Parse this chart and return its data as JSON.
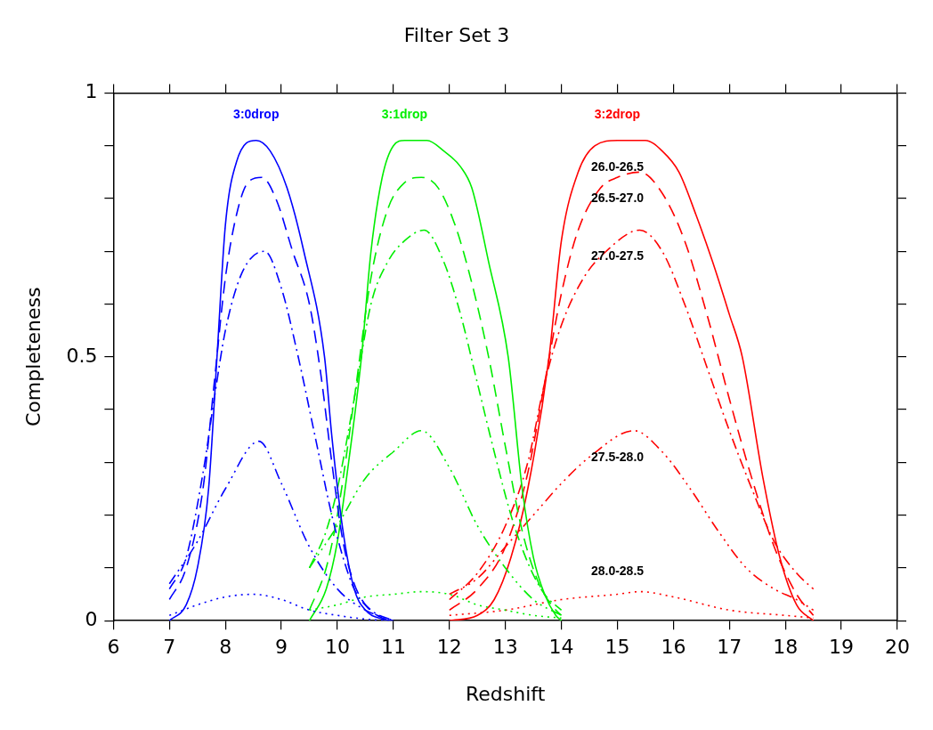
{
  "chart_data": {
    "type": "line",
    "title": "Filter Set 3",
    "xlabel": "Redshift",
    "ylabel": "Completeness",
    "xlim": [
      6,
      20
    ],
    "xticks": [
      6,
      7,
      8,
      9,
      10,
      11,
      12,
      13,
      14,
      15,
      16,
      17,
      18,
      19,
      20
    ],
    "ylim": [
      0,
      1
    ],
    "yticks": [
      0,
      {
        "value": 0.1,
        "label": null
      },
      {
        "value": 0.2,
        "label": null
      },
      {
        "value": 0.3,
        "label": null
      },
      {
        "value": 0.4,
        "label": null
      },
      0.5,
      {
        "value": 0.6,
        "label": null
      },
      {
        "value": 0.7,
        "label": null
      },
      {
        "value": 0.8,
        "label": null
      },
      {
        "value": 0.9,
        "label": null
      },
      1
    ],
    "grid": false,
    "legend": false,
    "marker": "none",
    "series": [
      {
        "color": "#0000ff",
        "line_style": "solid",
        "x": [
          7,
          7.3,
          7.5,
          7.7,
          7.85,
          8.0,
          8.2,
          8.55,
          8.8,
          9.1,
          9.4,
          9.77,
          9.9,
          10.1,
          10.3,
          10.5,
          10.8,
          11
        ],
        "values": [
          0,
          0.03,
          0.1,
          0.25,
          0.5,
          0.75,
          0.87,
          0.91,
          0.89,
          0.82,
          0.7,
          0.5,
          0.35,
          0.17,
          0.06,
          0.02,
          0.003,
          0
        ]
      },
      {
        "color": "#0000ff",
        "line_style": "dashed",
        "x": [
          7,
          7.3,
          7.6,
          7.8,
          8.0,
          8.2,
          8.4,
          8.65,
          8.9,
          9.2,
          9.5,
          9.7,
          9.9,
          10.1,
          10.3,
          10.5,
          10.8,
          11
        ],
        "values": [
          0.04,
          0.1,
          0.25,
          0.45,
          0.65,
          0.77,
          0.83,
          0.84,
          0.8,
          0.7,
          0.6,
          0.47,
          0.3,
          0.15,
          0.07,
          0.03,
          0.005,
          0
        ]
      },
      {
        "color": "#0000ff",
        "line_style": "dashdot",
        "x": [
          7,
          7.3,
          7.6,
          7.8,
          8.0,
          8.3,
          8.7,
          9.0,
          9.3,
          9.6,
          9.9,
          10.1,
          10.3,
          10.6,
          11
        ],
        "values": [
          0.06,
          0.12,
          0.28,
          0.42,
          0.55,
          0.66,
          0.7,
          0.63,
          0.5,
          0.35,
          0.2,
          0.12,
          0.06,
          0.02,
          0
        ]
      },
      {
        "color": "#0000ff",
        "line_style": "dashdotdot",
        "x": [
          7,
          7.5,
          8.0,
          8.6,
          9.0,
          9.5,
          10.0,
          10.5,
          11
        ],
        "values": [
          0.07,
          0.15,
          0.25,
          0.34,
          0.26,
          0.14,
          0.06,
          0.02,
          0
        ]
      },
      {
        "color": "#0000ff",
        "line_style": "dotted",
        "x": [
          7,
          7.5,
          8.0,
          8.5,
          9.0,
          9.5,
          10,
          10.5,
          11
        ],
        "values": [
          0.01,
          0.03,
          0.045,
          0.05,
          0.04,
          0.02,
          0.01,
          0.003,
          0
        ]
      },
      {
        "color": "#00ee00",
        "line_style": "solid",
        "x": [
          9.5,
          9.8,
          10.0,
          10.2,
          10.43,
          10.6,
          10.8,
          11.0,
          11.2,
          11.6,
          11.9,
          12.2,
          12.4,
          12.7,
          13.05,
          13.3,
          13.5,
          13.7,
          13.9,
          14
        ],
        "values": [
          0,
          0.06,
          0.15,
          0.3,
          0.5,
          0.7,
          0.84,
          0.9,
          0.91,
          0.91,
          0.89,
          0.86,
          0.82,
          0.68,
          0.5,
          0.25,
          0.12,
          0.05,
          0.01,
          0
        ]
      },
      {
        "color": "#00ee00",
        "line_style": "dashed",
        "x": [
          9.5,
          9.8,
          10.0,
          10.3,
          10.6,
          10.9,
          11.2,
          11.5,
          11.8,
          12.1,
          12.4,
          12.7,
          13.0,
          13.3,
          13.6,
          13.9,
          14
        ],
        "values": [
          0.02,
          0.1,
          0.2,
          0.42,
          0.65,
          0.78,
          0.83,
          0.84,
          0.82,
          0.75,
          0.64,
          0.5,
          0.33,
          0.17,
          0.07,
          0.02,
          0.01
        ]
      },
      {
        "color": "#00ee00",
        "line_style": "dashdot",
        "x": [
          9.5,
          9.8,
          10.0,
          10.3,
          10.6,
          10.9,
          11.2,
          11.55,
          11.9,
          12.2,
          12.5,
          12.8,
          13.1,
          13.4,
          13.7,
          14
        ],
        "values": [
          0.1,
          0.17,
          0.25,
          0.42,
          0.6,
          0.68,
          0.72,
          0.74,
          0.68,
          0.58,
          0.45,
          0.32,
          0.2,
          0.11,
          0.05,
          0.02
        ]
      },
      {
        "color": "#00ee00",
        "line_style": "dashdotdot",
        "x": [
          9.5,
          10,
          10.5,
          11,
          11.5,
          12,
          12.5,
          13,
          13.5,
          14
        ],
        "values": [
          0.1,
          0.18,
          0.27,
          0.32,
          0.36,
          0.29,
          0.18,
          0.1,
          0.04,
          0.01
        ]
      },
      {
        "color": "#00ee00",
        "line_style": "dotted",
        "x": [
          9.5,
          10,
          10.5,
          11,
          11.5,
          12,
          12.5,
          13,
          13.5,
          14
        ],
        "values": [
          0.02,
          0.03,
          0.045,
          0.05,
          0.055,
          0.05,
          0.03,
          0.02,
          0.01,
          0.005
        ]
      },
      {
        "color": "#ff0000",
        "line_style": "solid",
        "x": [
          12,
          12.5,
          12.8,
          13.1,
          13.4,
          13.78,
          14.0,
          14.3,
          14.6,
          15.0,
          15.5,
          15.8,
          16.1,
          16.4,
          16.7,
          17.0,
          17.23,
          17.6,
          17.9,
          18.2,
          18.5
        ],
        "values": [
          0,
          0.01,
          0.04,
          0.12,
          0.25,
          0.5,
          0.72,
          0.85,
          0.9,
          0.91,
          0.91,
          0.89,
          0.85,
          0.77,
          0.68,
          0.58,
          0.5,
          0.27,
          0.12,
          0.03,
          0
        ]
      },
      {
        "color": "#ff0000",
        "line_style": "dashed",
        "x": [
          12,
          12.5,
          13,
          13.4,
          13.7,
          14.0,
          14.3,
          14.7,
          15.0,
          15.4,
          15.8,
          16.2,
          16.6,
          17.0,
          17.4,
          17.8,
          18.2,
          18.5
        ],
        "values": [
          0.02,
          0.06,
          0.14,
          0.28,
          0.45,
          0.62,
          0.74,
          0.82,
          0.84,
          0.85,
          0.81,
          0.72,
          0.58,
          0.42,
          0.27,
          0.14,
          0.05,
          0.01
        ]
      },
      {
        "color": "#ff0000",
        "line_style": "dashdot",
        "x": [
          12,
          12.5,
          13,
          13.4,
          13.7,
          14,
          14.4,
          14.8,
          15.4,
          15.8,
          16.2,
          16.6,
          17.0,
          17.4,
          17.8,
          18.2,
          18.5
        ],
        "values": [
          0.04,
          0.09,
          0.18,
          0.3,
          0.45,
          0.56,
          0.65,
          0.7,
          0.74,
          0.7,
          0.6,
          0.48,
          0.36,
          0.25,
          0.15,
          0.09,
          0.06
        ]
      },
      {
        "color": "#ff0000",
        "line_style": "dashdotdot",
        "x": [
          12,
          12.5,
          13,
          13.5,
          14,
          14.5,
          15.3,
          15.8,
          16.3,
          16.8,
          17.3,
          17.8,
          18.2,
          18.5
        ],
        "values": [
          0.05,
          0.08,
          0.14,
          0.2,
          0.26,
          0.31,
          0.36,
          0.32,
          0.25,
          0.17,
          0.1,
          0.06,
          0.04,
          0.02
        ]
      },
      {
        "color": "#ff0000",
        "line_style": "dotted",
        "x": [
          12,
          13,
          14,
          15,
          15.4,
          16,
          17,
          18,
          18.5
        ],
        "values": [
          0.01,
          0.02,
          0.04,
          0.05,
          0.055,
          0.045,
          0.02,
          0.01,
          0.005
        ]
      }
    ],
    "annotations": [
      "3:0drop",
      "3:1drop",
      "3:2drop",
      "26.0-26.5",
      "26.5-27.0",
      "27.0-27.5",
      "27.5-28.0",
      "28.0-28.5"
    ]
  }
}
